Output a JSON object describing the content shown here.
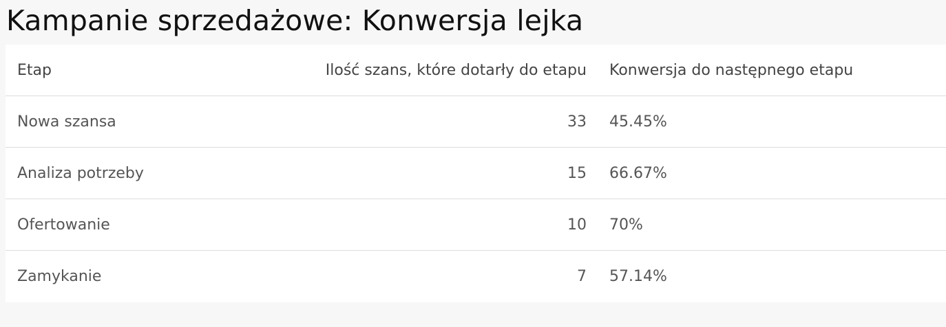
{
  "title": "Kampanie sprzedażowe: Konwersja lejka",
  "table": {
    "headers": [
      "Etap",
      "Ilość szans, które dotarły do etapu",
      "Konwersja do następnego etapu"
    ],
    "rows": [
      [
        "Nowa szansa",
        "33",
        "45.45%"
      ],
      [
        "Analiza potrzeby",
        "15",
        "66.67%"
      ],
      [
        "Ofertowanie",
        "10",
        "70%"
      ],
      [
        "Zamykanie",
        "7",
        "57.14%"
      ]
    ]
  }
}
